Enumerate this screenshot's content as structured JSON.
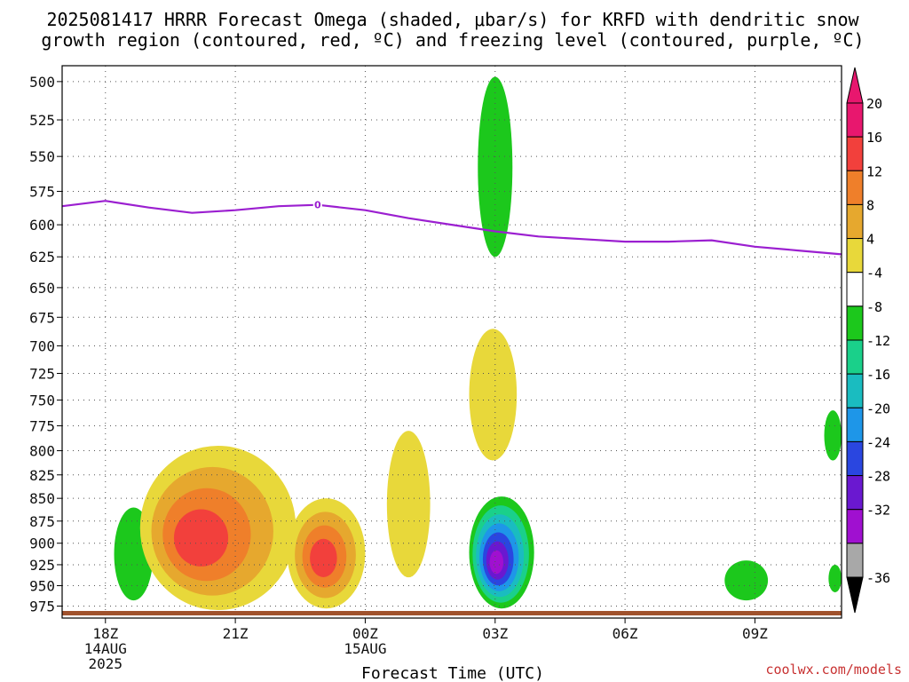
{
  "title": {
    "line1": "2025081417 HRRR Forecast Omega (shaded, μbar/s) for KRFD with dendritic snow",
    "line2": "growth region (contoured, red, ºC) and freezing level (contoured, purple, ºC)"
  },
  "credit": "coolwx.com/models",
  "colors": {
    "freezing_level": "#9b1fd0",
    "ground": "#a0522d",
    "grid": "#555555"
  },
  "chart_data": {
    "type": "heatmap",
    "title": "2025081417 HRRR Forecast Omega (shaded, μbar/s) for KRFD with dendritic snow growth region (contoured, red, ºC) and freezing level (contoured, purple, ºC)",
    "xlabel": "Forecast Time (UTC)",
    "ylabel": "",
    "x_range_hours_utc": [
      17,
      35
    ],
    "y_axis": {
      "unit": "hPa",
      "reversed": true,
      "scale": "log",
      "range": [
        490,
        990
      ]
    },
    "grid": true,
    "x_ticks": [
      {
        "hour": 18,
        "lines": [
          "18Z",
          "14AUG",
          "2025"
        ]
      },
      {
        "hour": 21,
        "lines": [
          "21Z"
        ]
      },
      {
        "hour": 24,
        "lines": [
          "00Z",
          "15AUG"
        ]
      },
      {
        "hour": 27,
        "lines": [
          "03Z"
        ]
      },
      {
        "hour": 30,
        "lines": [
          "06Z"
        ]
      },
      {
        "hour": 33,
        "lines": [
          "09Z"
        ]
      }
    ],
    "y_ticks": [
      500,
      525,
      550,
      575,
      600,
      625,
      650,
      675,
      700,
      725,
      750,
      775,
      800,
      825,
      850,
      875,
      900,
      925,
      950,
      975
    ],
    "colorbar": {
      "labels": [
        "20",
        "16",
        "12",
        "8",
        "4",
        "-4",
        "-8",
        "-12",
        "-16",
        "-20",
        "-24",
        "-28",
        "-32",
        "-36"
      ],
      "colors": [
        "#e8176e",
        "#f2403c",
        "#ef7f2a",
        "#e6a82e",
        "#e8d83a",
        "#ffffff",
        "#1cc81c",
        "#1ad08a",
        "#1abcc0",
        "#1e96e8",
        "#2a46e0",
        "#6a18d0",
        "#a010d0",
        "#a8a8a8"
      ],
      "over_color": "#e8176e",
      "under_color": "#000000"
    },
    "freezing_level_0C": {
      "label": "0",
      "label_hour": 22.9,
      "points": [
        [
          17,
          586
        ],
        [
          18,
          582
        ],
        [
          19,
          587
        ],
        [
          20,
          591
        ],
        [
          21,
          589
        ],
        [
          22,
          586
        ],
        [
          22.9,
          585
        ],
        [
          24,
          589
        ],
        [
          25,
          595
        ],
        [
          26,
          600
        ],
        [
          27,
          605
        ],
        [
          28,
          609
        ],
        [
          29,
          611
        ],
        [
          30,
          613
        ],
        [
          31,
          613
        ],
        [
          32,
          612
        ],
        [
          33,
          617
        ],
        [
          34,
          620
        ],
        [
          35,
          623
        ]
      ]
    },
    "omega_features": [
      {
        "center_hour": 18.6,
        "center_p": 925,
        "value": -6,
        "extent_hours": [
          18.2,
          19.1
        ],
        "extent_p": [
          860,
          968
        ]
      },
      {
        "center_hour": 20.0,
        "center_p": 900,
        "value": 20,
        "extent_hours": [
          18.8,
          22.4
        ],
        "extent_p": [
          795,
          980
        ]
      },
      {
        "center_hour": 23.0,
        "center_p": 920,
        "value": 20,
        "extent_hours": [
          22.2,
          24.0
        ],
        "extent_p": [
          850,
          978
        ]
      },
      {
        "center_hour": 24.9,
        "center_p": 860,
        "value": 4,
        "extent_hours": [
          24.5,
          25.5
        ],
        "extent_p": [
          780,
          940
        ]
      },
      {
        "center_hour": 27.0,
        "center_p": 750,
        "value": 8,
        "extent_hours": [
          26.4,
          27.5
        ],
        "extent_p": [
          685,
          810
        ]
      },
      {
        "center_hour": 27.0,
        "center_p": 570,
        "value": -6,
        "extent_hours": [
          26.6,
          27.4
        ],
        "extent_p": [
          497,
          625
        ]
      },
      {
        "center_hour": 27.0,
        "center_p": 925,
        "value": -28,
        "extent_hours": [
          26.4,
          27.9
        ],
        "extent_p": [
          848,
          978
        ]
      },
      {
        "center_hour": 34.9,
        "center_p": 780,
        "value": -6,
        "extent_hours": [
          34.6,
          35.0
        ],
        "extent_p": [
          760,
          810
        ]
      },
      {
        "center_hour": 33.0,
        "center_p": 955,
        "value": -6,
        "extent_hours": [
          32.3,
          33.3
        ],
        "extent_p": [
          920,
          968
        ]
      },
      {
        "center_hour": 34.9,
        "center_p": 940,
        "value": -6,
        "extent_hours": [
          34.7,
          35.0
        ],
        "extent_p": [
          925,
          958
        ]
      }
    ]
  }
}
